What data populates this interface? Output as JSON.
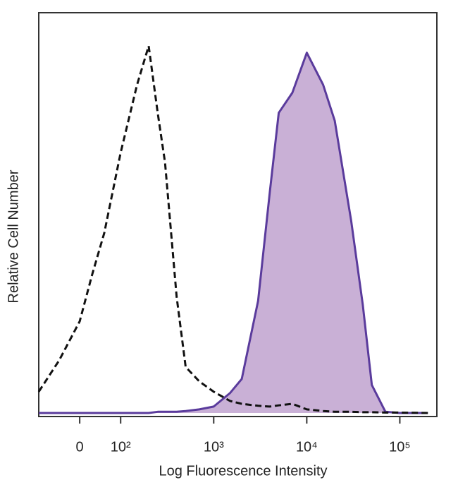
{
  "chart_data": {
    "type": "histogram-overlay",
    "x_label": "Log Fluorescence Intensity",
    "y_label": "Relative Cell Number",
    "xscale": "biexponential",
    "xlim": [
      -100,
      250000
    ],
    "ylim": [
      0,
      100
    ],
    "xticks": [
      0,
      {
        "value": 100,
        "label": "10²"
      },
      {
        "value": 1000,
        "label": "10³"
      },
      {
        "value": 10000,
        "label": "10⁴"
      },
      {
        "value": 100000,
        "label": "10⁵"
      }
    ],
    "x": [
      -100,
      -50,
      0,
      30,
      60,
      100,
      150,
      200,
      250,
      300,
      400,
      500,
      700,
      1000,
      1500,
      2000,
      3000,
      4000,
      5000,
      7000,
      10000,
      15000,
      20000,
      30000,
      40000,
      50000,
      70000,
      100000,
      200000
    ],
    "series": [
      {
        "color": "#111111",
        "style": "dashed",
        "filled": false,
        "values": [
          5.3,
          13.2,
          22.9,
          34.4,
          45,
          65,
          82,
          91.7,
          75,
          62.6,
          29,
          11.5,
          7.9,
          5.3,
          3,
          2.3,
          1.8,
          1.6,
          1.9,
          2.3,
          0.9,
          0.5,
          0.3,
          0.3,
          0.2,
          0.2,
          0.1,
          0.1,
          0
        ]
      },
      {
        "color": "#5a3b9c",
        "fill": "#c9b0d6",
        "style": "solid",
        "filled": true,
        "values": [
          0,
          0,
          0,
          0,
          0,
          0,
          0,
          0,
          0.3,
          0.3,
          0.3,
          0.5,
          0.9,
          1.6,
          5,
          8.5,
          28,
          55,
          75,
          80,
          90,
          82,
          73,
          48,
          27,
          7,
          0.3,
          0,
          0
        ]
      }
    ]
  }
}
